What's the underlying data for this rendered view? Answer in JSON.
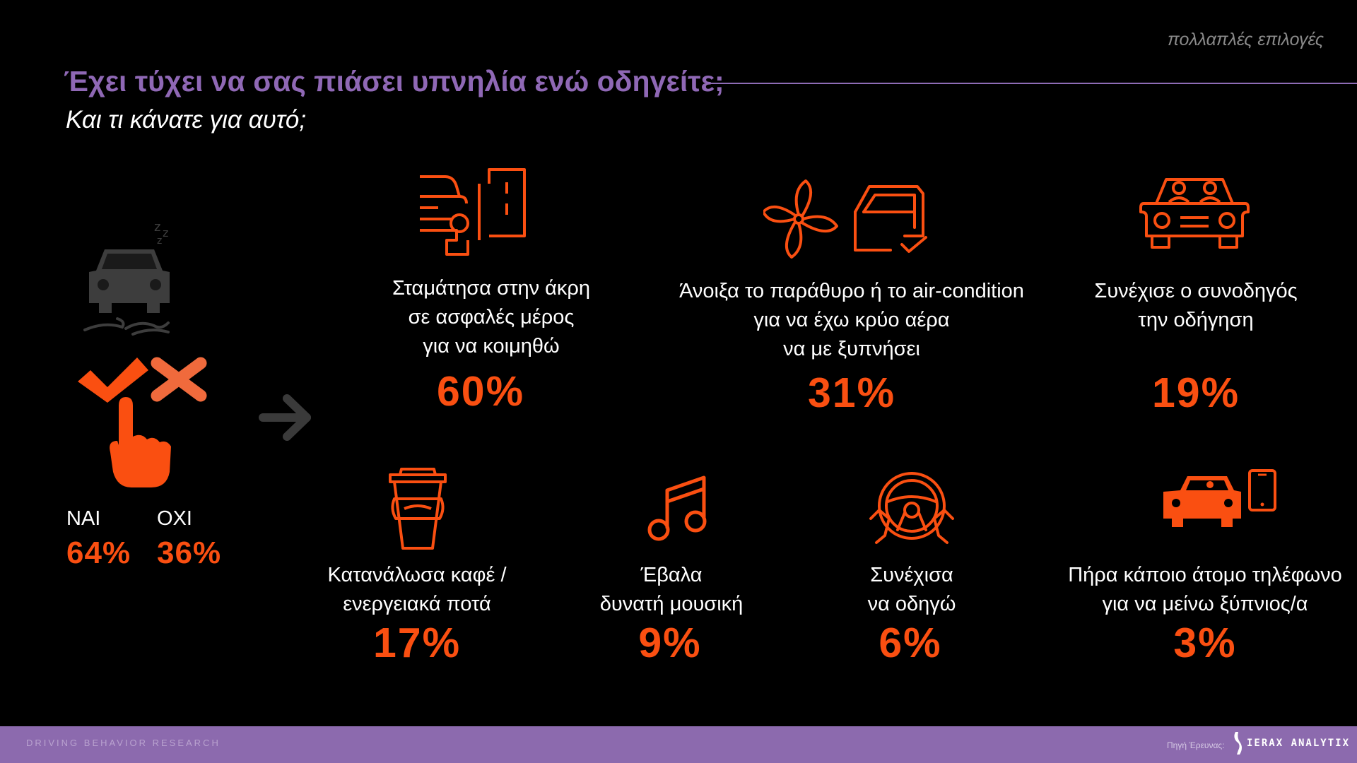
{
  "header": {
    "tag": "πολλαπλές επιλογές",
    "title": "Έχει τύχει να σας πιάσει υπνηλία ενώ οδηγείτε;",
    "subtitle": "Και τι κάνατε για αυτό;"
  },
  "answer": {
    "yes_label": "ΝΑΙ",
    "yes_pct": "64%",
    "no_label": "ΟΧΙ",
    "no_pct": "36%"
  },
  "items": [
    {
      "lines": [
        "Σταμάτησα στην άκρη",
        "σε ασφαλές μέρος",
        "για να κοιμηθώ"
      ],
      "pct": "60%",
      "icon": "car-roadside-icon"
    },
    {
      "lines": [
        "Άνοιξα το παράθυρο ή το air-condition",
        "για να έχω κρύο αέρα",
        "να με ξυπνήσει"
      ],
      "pct": "31%",
      "icon": "fan-window-icon"
    },
    {
      "lines": [
        "Συνέχισε ο συνοδηγός",
        "την οδήγηση"
      ],
      "pct": "19%",
      "icon": "car-passengers-icon"
    },
    {
      "lines": [
        "Κατανάλωσα καφέ /",
        "ενεργειακά ποτά"
      ],
      "pct": "17%",
      "icon": "coffee-cup-icon"
    },
    {
      "lines": [
        "Έβαλα",
        "δυνατή μουσική"
      ],
      "pct": "9%",
      "icon": "music-note-icon"
    },
    {
      "lines": [
        "Συνέχισα",
        "να οδηγώ"
      ],
      "pct": "6%",
      "icon": "steering-wheel-icon"
    },
    {
      "lines": [
        "Πήρα κάποιο άτομο τηλέφωνο",
        "για να μείνω ξύπνιος/α"
      ],
      "pct": "3%",
      "icon": "car-phone-icon"
    }
  ],
  "footer": {
    "left": "DRIVING BEHAVIOR RESEARCH",
    "source": "Πηγή Έρευνας:",
    "brand": "IERAX ANALYTIX"
  },
  "colors": {
    "accent": "#fa4f11",
    "purple": "#8c6aae",
    "grey": "#3a3a3a"
  }
}
